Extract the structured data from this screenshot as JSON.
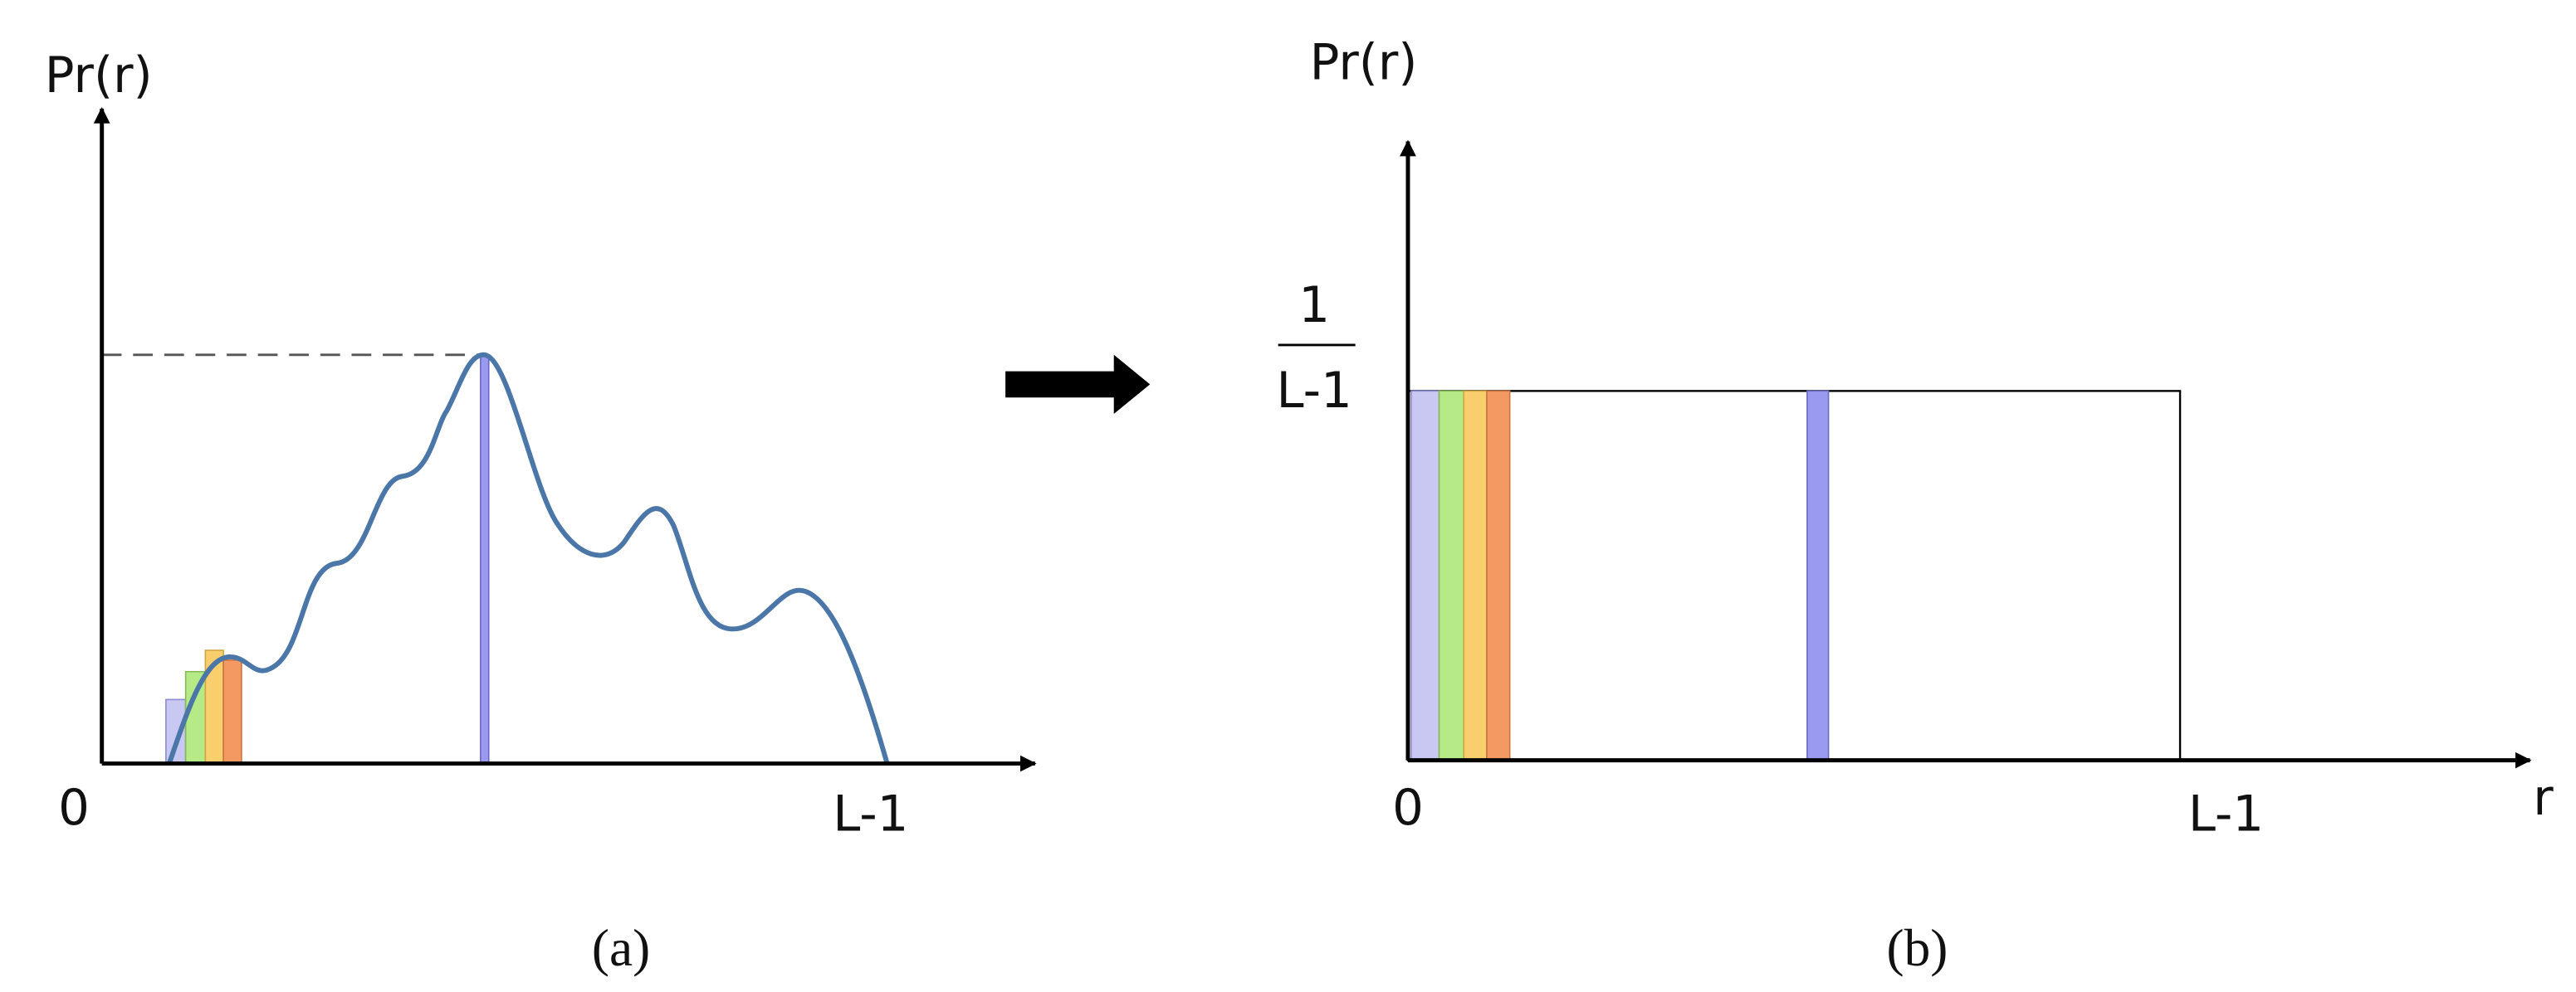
{
  "panel_a": {
    "y_label": "Pr(r)",
    "origin": "0",
    "x_end": "L-1",
    "caption": "(a)"
  },
  "panel_b": {
    "y_label": "Pr(r)",
    "level_numerator": "1",
    "level_denominator": "L-1",
    "origin": "0",
    "x_end": "L-1",
    "x_label": "r",
    "caption": "(b)"
  }
}
